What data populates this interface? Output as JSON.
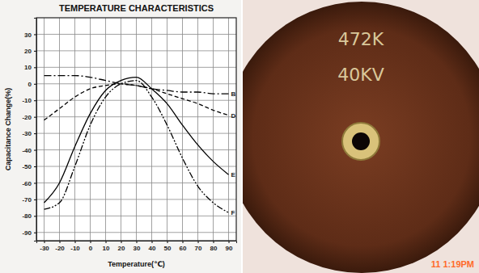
{
  "chart_data": {
    "type": "line",
    "title": "TEMPERATURE CHARACTERISTICS",
    "x_label": "Temperature(℃)",
    "y_label": "Capacitance Change(%)",
    "x": [
      -30,
      -20,
      -10,
      0,
      10,
      20,
      30,
      40,
      50,
      60,
      70,
      80,
      90
    ],
    "series": [
      {
        "name": "B",
        "color": "#000000",
        "line_style": "dashdot",
        "values": [
          5,
          5,
          5,
          4,
          2,
          0,
          -1,
          -3,
          -4,
          -5,
          -5,
          -6,
          -6
        ]
      },
      {
        "name": "D",
        "color": "#000000",
        "line_style": "dashed",
        "values": [
          -22,
          -15,
          -8,
          -3,
          -1,
          0,
          -1,
          -3,
          -6,
          -9,
          -12,
          -16,
          -19
        ]
      },
      {
        "name": "E",
        "color": "#000000",
        "line_style": "solid",
        "values": [
          -72,
          -60,
          -38,
          -18,
          -4,
          2,
          4,
          -3,
          -12,
          -25,
          -37,
          -47,
          -55
        ]
      },
      {
        "name": "F",
        "color": "#000000",
        "line_style": "dashdotdot",
        "values": [
          -76,
          -72,
          -50,
          -25,
          -8,
          0,
          2,
          -8,
          -25,
          -45,
          -62,
          -72,
          -78
        ]
      }
    ],
    "xlim": [
      -35,
      95
    ],
    "xticks": [
      -30,
      -20,
      -10,
      0,
      10,
      20,
      30,
      40,
      50,
      60,
      70,
      80,
      90
    ],
    "ylim": [
      -95,
      40
    ],
    "yticks": [
      -90,
      -80,
      -70,
      -60,
      -50,
      -40,
      -30,
      -20,
      -10,
      0,
      10,
      20,
      30
    ],
    "grid": true
  },
  "photo": {
    "markings": [
      "472K",
      "40KV"
    ],
    "timestamp": "11 1:19PM"
  }
}
